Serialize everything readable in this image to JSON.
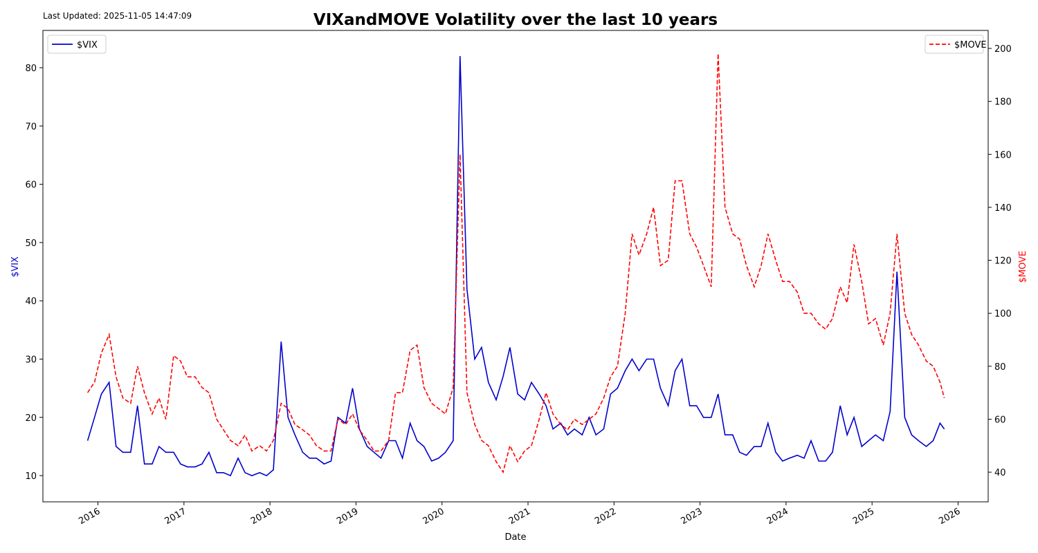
{
  "chart_data": {
    "type": "line",
    "title": "VIXandMOVE Volatility over the last 10 years",
    "annotation": "Last Updated: 2025-11-05 14:47:09",
    "xlabel": "Date",
    "ylabel": "$VIX",
    "y2label": "$MOVE",
    "x": [
      2015.88,
      2015.96,
      2016.04,
      2016.13,
      2016.21,
      2016.29,
      2016.38,
      2016.46,
      2016.54,
      2016.63,
      2016.71,
      2016.79,
      2016.88,
      2016.96,
      2017.04,
      2017.13,
      2017.21,
      2017.29,
      2017.38,
      2017.46,
      2017.54,
      2017.63,
      2017.71,
      2017.79,
      2017.88,
      2017.96,
      2018.04,
      2018.13,
      2018.21,
      2018.29,
      2018.38,
      2018.46,
      2018.54,
      2018.63,
      2018.71,
      2018.79,
      2018.88,
      2018.96,
      2019.04,
      2019.13,
      2019.21,
      2019.29,
      2019.38,
      2019.46,
      2019.54,
      2019.63,
      2019.71,
      2019.79,
      2019.88,
      2019.96,
      2020.04,
      2020.13,
      2020.21,
      2020.29,
      2020.38,
      2020.46,
      2020.54,
      2020.63,
      2020.71,
      2020.79,
      2020.88,
      2020.96,
      2021.04,
      2021.13,
      2021.21,
      2021.29,
      2021.38,
      2021.46,
      2021.54,
      2021.63,
      2021.71,
      2021.79,
      2021.88,
      2021.96,
      2022.04,
      2022.13,
      2022.21,
      2022.29,
      2022.38,
      2022.46,
      2022.54,
      2022.63,
      2022.71,
      2022.79,
      2022.88,
      2022.96,
      2023.04,
      2023.13,
      2023.21,
      2023.29,
      2023.38,
      2023.46,
      2023.54,
      2023.63,
      2023.71,
      2023.79,
      2023.88,
      2023.96,
      2024.04,
      2024.13,
      2024.21,
      2024.29,
      2024.38,
      2024.46,
      2024.54,
      2024.63,
      2024.71,
      2024.79,
      2024.88,
      2024.96,
      2025.04,
      2025.13,
      2025.21,
      2025.29,
      2025.38,
      2025.46,
      2025.54,
      2025.63,
      2025.71,
      2025.79,
      2025.84
    ],
    "series": [
      {
        "name": "$VIX",
        "color": "#0000cc",
        "axis": "y",
        "style": "solid",
        "values": [
          16,
          20,
          24,
          26,
          15,
          14,
          14,
          22,
          12,
          12,
          15,
          14,
          14,
          12,
          11.5,
          11.5,
          12,
          14,
          10.5,
          10.5,
          10,
          13,
          10.5,
          10,
          10.5,
          10,
          11,
          33,
          20,
          17,
          14,
          13,
          13,
          12,
          12.5,
          20,
          19,
          25,
          18,
          15,
          14,
          13,
          16,
          16,
          13,
          19,
          16,
          15,
          12.5,
          13,
          14,
          16,
          82,
          42,
          30,
          32,
          26,
          23,
          27,
          32,
          24,
          23,
          26,
          24,
          22,
          18,
          19,
          17,
          18,
          17,
          20,
          17,
          18,
          24,
          25,
          28,
          30,
          28,
          30,
          30,
          25,
          22,
          28,
          30,
          22,
          22,
          20,
          20,
          24,
          17,
          17,
          14,
          13.5,
          15,
          15,
          19,
          14,
          12.5,
          13,
          13.5,
          13,
          16,
          12.5,
          12.5,
          14,
          22,
          17,
          20,
          15,
          16,
          17,
          16,
          21,
          45,
          20,
          17,
          16,
          15,
          16,
          19,
          18
        ]
      },
      {
        "name": "$MOVE",
        "color": "#ff0000",
        "axis": "y2",
        "style": "dashed",
        "values": [
          70,
          74,
          85,
          92,
          76,
          68,
          66,
          80,
          70,
          62,
          68,
          60,
          84,
          82,
          76,
          76,
          72,
          70,
          60,
          56,
          52,
          50,
          54,
          48,
          50,
          48,
          52,
          66,
          64,
          58,
          56,
          54,
          50,
          48,
          48,
          60,
          58,
          62,
          56,
          52,
          48,
          48,
          52,
          70,
          70,
          86,
          88,
          72,
          66,
          64,
          62,
          72,
          160,
          70,
          58,
          52,
          50,
          44,
          40,
          50,
          44,
          48,
          50,
          60,
          70,
          62,
          58,
          56,
          60,
          58,
          60,
          62,
          68,
          76,
          80,
          100,
          130,
          122,
          130,
          140,
          118,
          120,
          150,
          150,
          130,
          125,
          118,
          110,
          198,
          140,
          130,
          128,
          118,
          110,
          118,
          130,
          120,
          112,
          112,
          108,
          100,
          100,
          96,
          94,
          98,
          110,
          104,
          126,
          112,
          96,
          98,
          88,
          100,
          130,
          100,
          92,
          88,
          82,
          80,
          74,
          68
        ]
      }
    ],
    "xlim": [
      2015.36,
      2026.35
    ],
    "xticks": [
      2016,
      2017,
      2018,
      2019,
      2020,
      2021,
      2022,
      2023,
      2024,
      2025,
      2026
    ],
    "ylim": [
      5.5,
      86.4
    ],
    "yticks": [
      10,
      20,
      30,
      40,
      50,
      60,
      70,
      80
    ],
    "y2lim": [
      28.8,
      206.8
    ],
    "y2ticks": [
      40,
      60,
      80,
      100,
      120,
      140,
      160,
      180,
      200
    ],
    "legend": [
      "upper left",
      "upper right"
    ]
  }
}
